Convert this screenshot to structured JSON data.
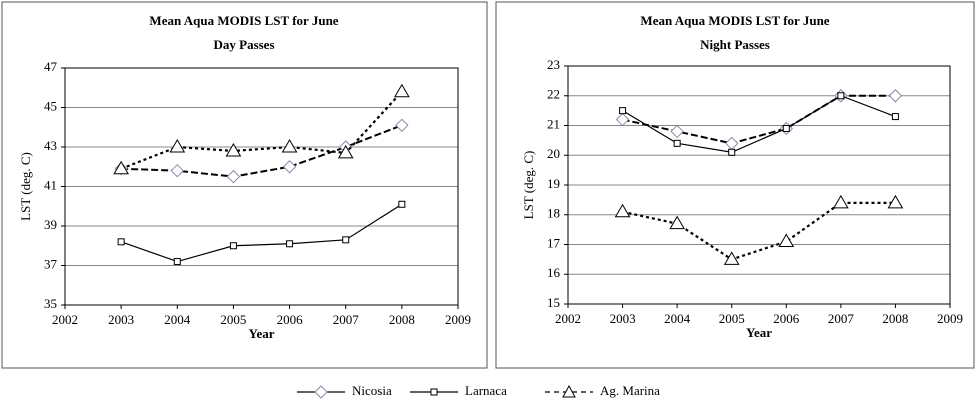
{
  "chart_data": [
    {
      "type": "line",
      "title": "Mean Aqua MODIS LST for June",
      "subtitle": "Day Passes",
      "x_label": "Year",
      "y_label": "LST (deg. C)",
      "x": [
        2003,
        2004,
        2005,
        2006,
        2007,
        2008
      ],
      "xlim": [
        2002,
        2009
      ],
      "xticks": [
        2002,
        2003,
        2004,
        2005,
        2006,
        2007,
        2008,
        2009
      ],
      "ylim": [
        35,
        47
      ],
      "yticks": [
        35,
        37,
        39,
        41,
        43,
        45,
        47
      ],
      "grid": true,
      "series": [
        {
          "name": "Nicosia",
          "color": "#000000",
          "marker": "diamond",
          "values": [
            41.9,
            41.8,
            41.5,
            42.0,
            43.0,
            44.1
          ]
        },
        {
          "name": "Larnaca",
          "color": "#000000",
          "marker": "square",
          "values": [
            38.2,
            37.2,
            38.0,
            38.1,
            38.3,
            40.1
          ]
        },
        {
          "name": "Ag. Marina",
          "color": "#000000",
          "marker": "triangle",
          "values": [
            41.9,
            43.0,
            42.8,
            43.0,
            42.7,
            45.8
          ]
        }
      ]
    },
    {
      "type": "line",
      "title": "Mean Aqua MODIS LST for June",
      "subtitle": "Night Passes",
      "x_label": "Year",
      "y_label": "LST (deg. C)",
      "x": [
        2003,
        2004,
        2005,
        2006,
        2007,
        2008
      ],
      "xlim": [
        2002,
        2009
      ],
      "xticks": [
        2002,
        2003,
        2004,
        2005,
        2006,
        2007,
        2008,
        2009
      ],
      "ylim": [
        15,
        23
      ],
      "yticks": [
        15,
        16,
        17,
        18,
        19,
        20,
        21,
        22,
        23
      ],
      "grid": true,
      "series": [
        {
          "color": "#000000",
          "marker": "diamond",
          "values": [
            21.2,
            20.8,
            20.4,
            20.9,
            22.0,
            22.0
          ]
        },
        {
          "color": "#000000",
          "marker": "square",
          "values": [
            21.5,
            20.4,
            20.1,
            20.9,
            22.0,
            21.3
          ]
        },
        {
          "color": "#000000",
          "marker": "triangle",
          "values": [
            18.1,
            17.7,
            16.5,
            17.1,
            18.4,
            18.4
          ]
        }
      ]
    }
  ]
}
